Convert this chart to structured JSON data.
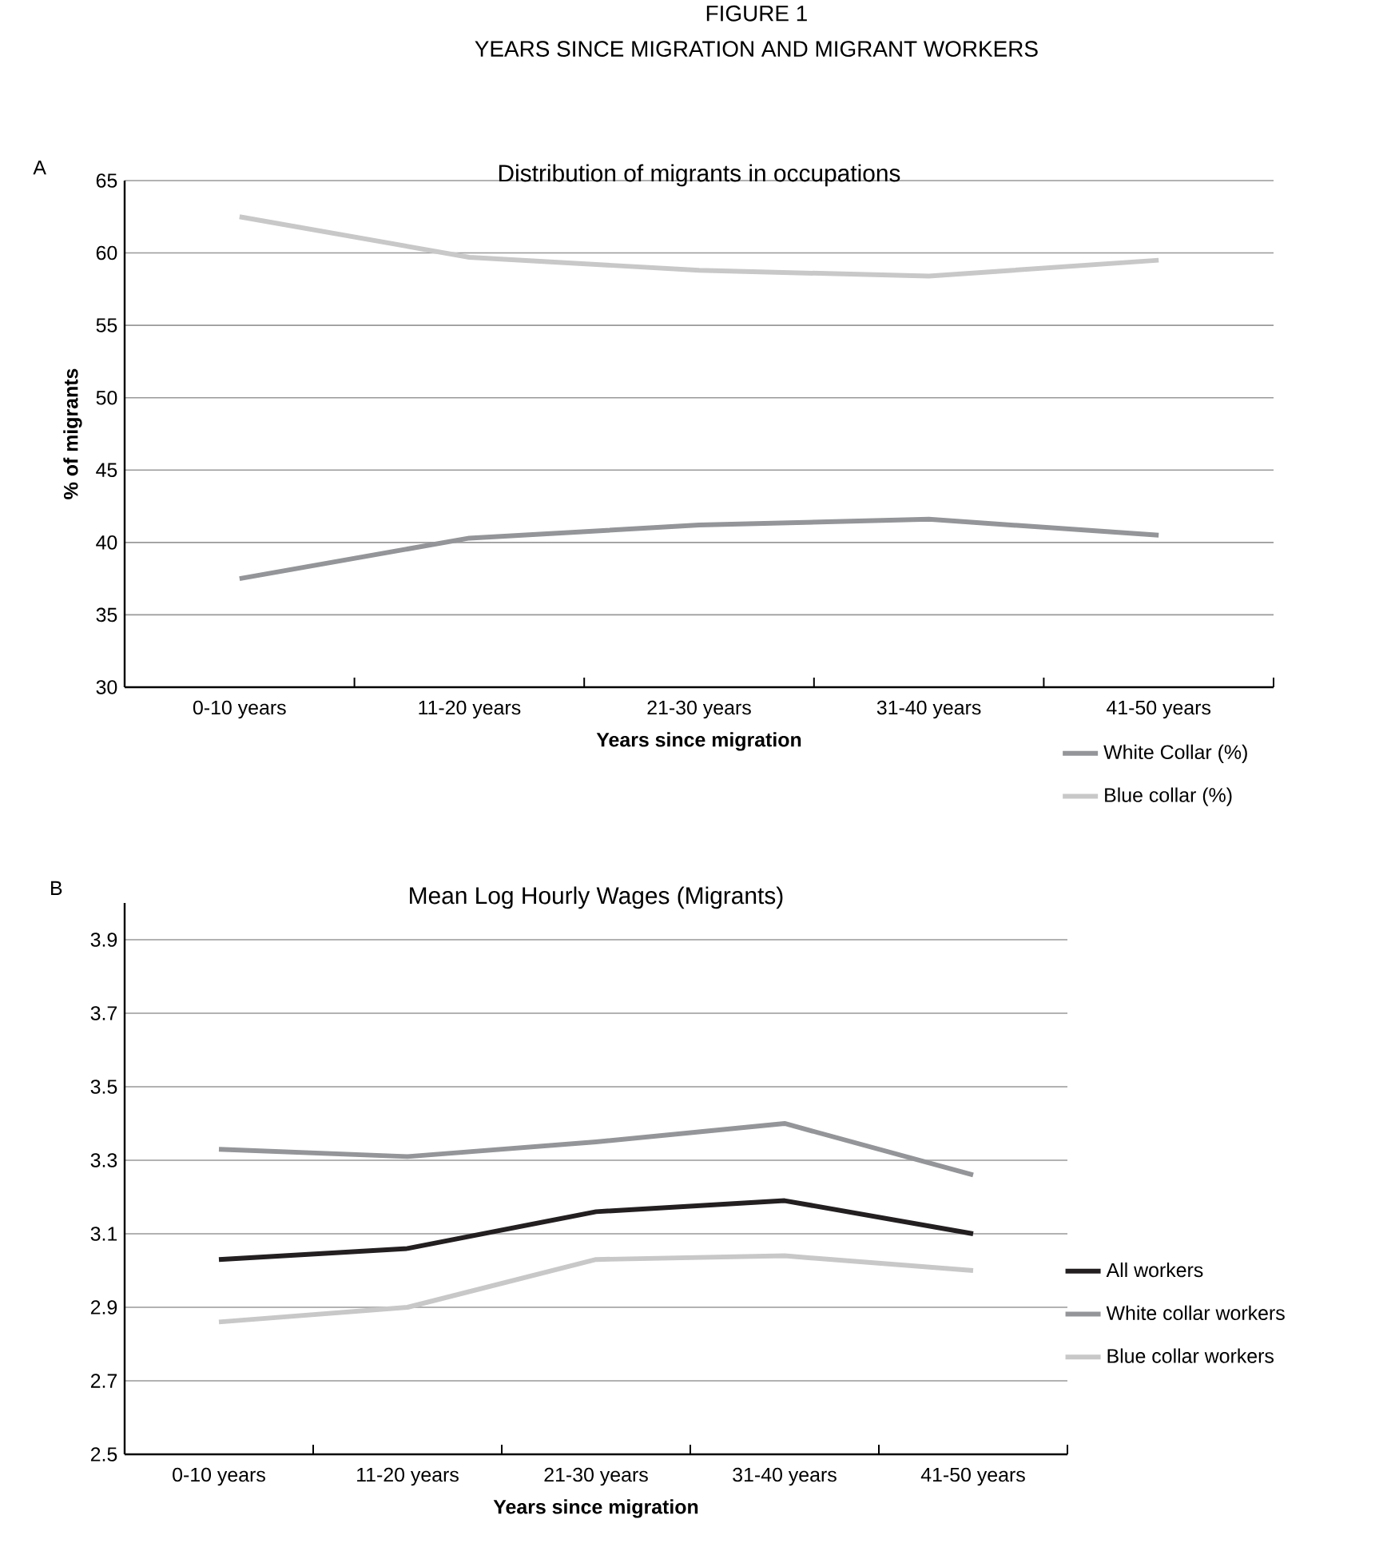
{
  "chart_data": [
    {
      "type": "line",
      "title": "Distribution of migrants in occupations",
      "xlabel": "Years since migration",
      "ylabel": "% of migrants",
      "annotations": [
        "FIGURE 1",
        "YEARS SINCE MIGRATION AND MIGRANT WORKERS",
        "A"
      ],
      "categories": [
        "0-10 years",
        "11-20 years",
        "21-30 years",
        "31-40 years",
        "41-50 years"
      ],
      "series": [
        {
          "name": "White Collar (%)",
          "color": "#939598",
          "values": [
            37.5,
            40.3,
            41.2,
            41.6,
            40.5
          ]
        },
        {
          "name": "Blue collar (%)",
          "color": "#c8c8c8",
          "values": [
            62.5,
            59.7,
            58.8,
            58.4,
            59.5
          ]
        }
      ],
      "ylim": [
        30,
        65
      ],
      "yticks": [
        30,
        35,
        40,
        45,
        50,
        55,
        60,
        65
      ],
      "grid": "y",
      "legend": "bottom right",
      "marker": "none",
      "line_style": "solid"
    },
    {
      "type": "line",
      "title": "Mean Log Hourly Wages (Migrants)",
      "xlabel": "Years since migration",
      "annotations": [
        "B"
      ],
      "categories": [
        "0-10 years",
        "11-20 years",
        "21-30 years",
        "31-40 years",
        "41-50 years"
      ],
      "series": [
        {
          "name": "All workers",
          "color": "#231f20",
          "values": [
            3.03,
            3.06,
            3.16,
            3.19,
            3.1
          ]
        },
        {
          "name": "White collar workers",
          "color": "#939598",
          "values": [
            3.33,
            3.31,
            3.35,
            3.4,
            3.26
          ]
        },
        {
          "name": "Blue collar workers",
          "color": "#c8c8c8",
          "values": [
            2.86,
            2.9,
            3.03,
            3.04,
            3.0
          ]
        }
      ],
      "ylim": [
        2.5,
        4.0
      ],
      "yticks": [
        2.5,
        2.7,
        2.9,
        3.1,
        3.3,
        3.5,
        3.7,
        3.9
      ],
      "grid": "y",
      "legend": "right",
      "marker": "none",
      "line_style": "solid"
    }
  ]
}
